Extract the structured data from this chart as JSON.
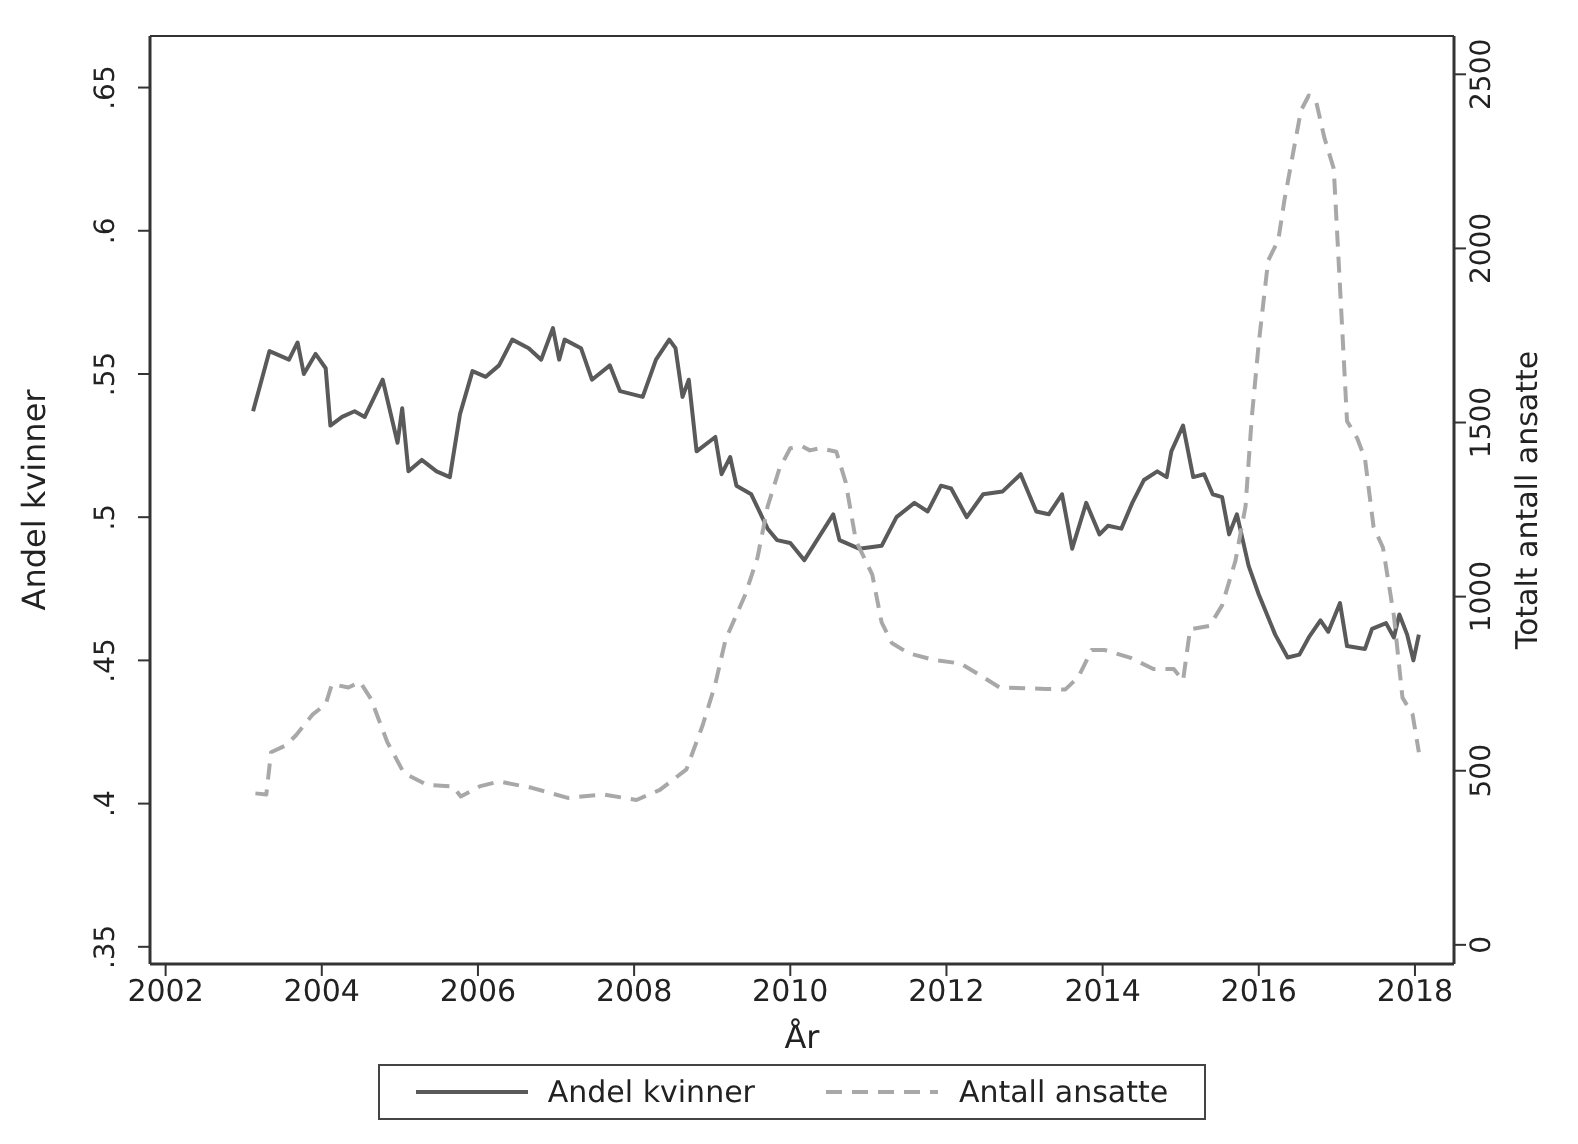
{
  "chart_data": {
    "type": "line",
    "xlabel": "År",
    "ylabel": "Andel kvinner",
    "y2label": "Totalt antall ansatte",
    "xlim": [
      2001.8,
      2018.5
    ],
    "xticks": [
      2002,
      2004,
      2006,
      2008,
      2010,
      2012,
      2014,
      2016,
      2018
    ],
    "ylim": [
      0.344,
      0.668
    ],
    "yticks": [
      {
        "value": 0.35,
        "label": ".35"
      },
      {
        "value": 0.4,
        "label": ".4"
      },
      {
        "value": 0.45,
        "label": ".45"
      },
      {
        "value": 0.5,
        "label": ".5"
      },
      {
        "value": 0.55,
        "label": ".55"
      },
      {
        "value": 0.6,
        "label": ".6"
      },
      {
        "value": 0.65,
        "label": ".65"
      }
    ],
    "y2lim": [
      -55,
      2610
    ],
    "y2ticks": [
      0,
      500,
      1000,
      1500,
      2000,
      2500
    ],
    "legend": "bottom",
    "marker": "none",
    "series": [
      {
        "name": "Andel kvinner",
        "color": "#5a5a5a",
        "line_style": "solid",
        "x": [
          2003.12,
          2003.21,
          2003.33,
          2003.58,
          2003.69,
          2003.77,
          2003.92,
          2004.05,
          2004.11,
          2004.26,
          2004.42,
          2004.55,
          2004.78,
          2004.97,
          2005.03,
          2005.11,
          2005.28,
          2005.47,
          2005.64,
          2005.77,
          2005.93,
          2006.1,
          2006.27,
          2006.44,
          2006.65,
          2006.81,
          2006.96,
          2007.04,
          2007.11,
          2007.32,
          2007.46,
          2007.69,
          2007.82,
          2008.11,
          2008.28,
          2008.45,
          2008.53,
          2008.62,
          2008.7,
          2008.8,
          2009.04,
          2009.12,
          2009.23,
          2009.31,
          2009.5,
          2009.71,
          2009.83,
          2010.0,
          2010.18,
          2010.55,
          2010.63,
          2010.88,
          2011.17,
          2011.36,
          2011.59,
          2011.76,
          2011.93,
          2012.06,
          2012.26,
          2012.47,
          2012.72,
          2012.95,
          2013.15,
          2013.31,
          2013.48,
          2013.61,
          2013.79,
          2013.96,
          2014.07,
          2014.24,
          2014.38,
          2014.53,
          2014.7,
          2014.82,
          2014.88,
          2015.03,
          2015.16,
          2015.3,
          2015.41,
          2015.53,
          2015.62,
          2015.72,
          2015.87,
          2016.0,
          2016.21,
          2016.37,
          2016.52,
          2016.64,
          2016.79,
          2016.89,
          2017.04,
          2017.13,
          2017.36,
          2017.45,
          2017.63,
          2017.73,
          2017.8,
          2017.9,
          2017.98,
          2018.05
        ],
        "values": [
          0.537,
          0.546,
          0.558,
          0.555,
          0.561,
          0.55,
          0.557,
          0.552,
          0.532,
          0.535,
          0.537,
          0.535,
          0.548,
          0.526,
          0.538,
          0.516,
          0.52,
          0.516,
          0.514,
          0.536,
          0.551,
          0.549,
          0.553,
          0.562,
          0.559,
          0.555,
          0.566,
          0.555,
          0.562,
          0.559,
          0.548,
          0.553,
          0.544,
          0.542,
          0.555,
          0.562,
          0.559,
          0.542,
          0.548,
          0.523,
          0.528,
          0.515,
          0.521,
          0.511,
          0.508,
          0.496,
          0.492,
          0.491,
          0.485,
          0.501,
          0.492,
          0.489,
          0.49,
          0.5,
          0.505,
          0.502,
          0.511,
          0.51,
          0.5,
          0.508,
          0.509,
          0.515,
          0.502,
          0.501,
          0.508,
          0.489,
          0.505,
          0.494,
          0.497,
          0.496,
          0.505,
          0.513,
          0.516,
          0.514,
          0.523,
          0.532,
          0.514,
          0.515,
          0.508,
          0.507,
          0.494,
          0.501,
          0.483,
          0.473,
          0.459,
          0.451,
          0.452,
          0.458,
          0.464,
          0.46,
          0.47,
          0.455,
          0.454,
          0.461,
          0.463,
          0.458,
          0.466,
          0.459,
          0.45,
          0.459
        ]
      },
      {
        "name": "Antall ansatte",
        "color": "#a8a8a8",
        "line_style": "dashed",
        "axis": "y2",
        "x": [
          2003.15,
          2003.29,
          2003.35,
          2003.54,
          2003.67,
          2003.88,
          2004.05,
          2004.13,
          2004.34,
          2004.49,
          2004.63,
          2004.84,
          2005.05,
          2005.35,
          2005.68,
          2005.78,
          2006.02,
          2006.27,
          2006.69,
          2007.15,
          2007.61,
          2008.03,
          2008.33,
          2008.67,
          2008.88,
          2009.04,
          2009.17,
          2009.42,
          2009.58,
          2009.71,
          2009.86,
          2010.0,
          2010.15,
          2010.25,
          2010.38,
          2010.59,
          2010.71,
          2010.84,
          2011.05,
          2011.17,
          2011.3,
          2011.51,
          2011.84,
          2012.18,
          2012.47,
          2012.68,
          2013.27,
          2013.52,
          2013.69,
          2013.86,
          2014.02,
          2014.36,
          2014.65,
          2014.91,
          2015.03,
          2015.12,
          2015.37,
          2015.53,
          2015.7,
          2015.83,
          2015.91,
          2016.0,
          2016.12,
          2016.25,
          2016.33,
          2016.54,
          2016.64,
          2016.73,
          2016.84,
          2016.96,
          2017.05,
          2017.13,
          2017.26,
          2017.36,
          2017.47,
          2017.59,
          2017.73,
          2017.84,
          2017.97,
          2018.05
        ],
        "values": [
          435,
          432,
          553,
          573,
          602,
          661,
          691,
          749,
          739,
          755,
          706,
          582,
          494,
          459,
          455,
          426,
          455,
          469,
          451,
          422,
          432,
          416,
          445,
          504,
          632,
          749,
          876,
          1004,
          1112,
          1259,
          1367,
          1426,
          1432,
          1420,
          1426,
          1416,
          1328,
          1161,
          1063,
          926,
          867,
          838,
          818,
          808,
          769,
          739,
          735,
          733,
          769,
          847,
          847,
          824,
          792,
          792,
          759,
          906,
          916,
          975,
          1102,
          1259,
          1514,
          1729,
          1965,
          2024,
          2141,
          2396,
          2439,
          2426,
          2318,
          2229,
          1847,
          1504,
          1455,
          1396,
          1200,
          1141,
          945,
          710,
          661,
          553
        ]
      }
    ]
  }
}
